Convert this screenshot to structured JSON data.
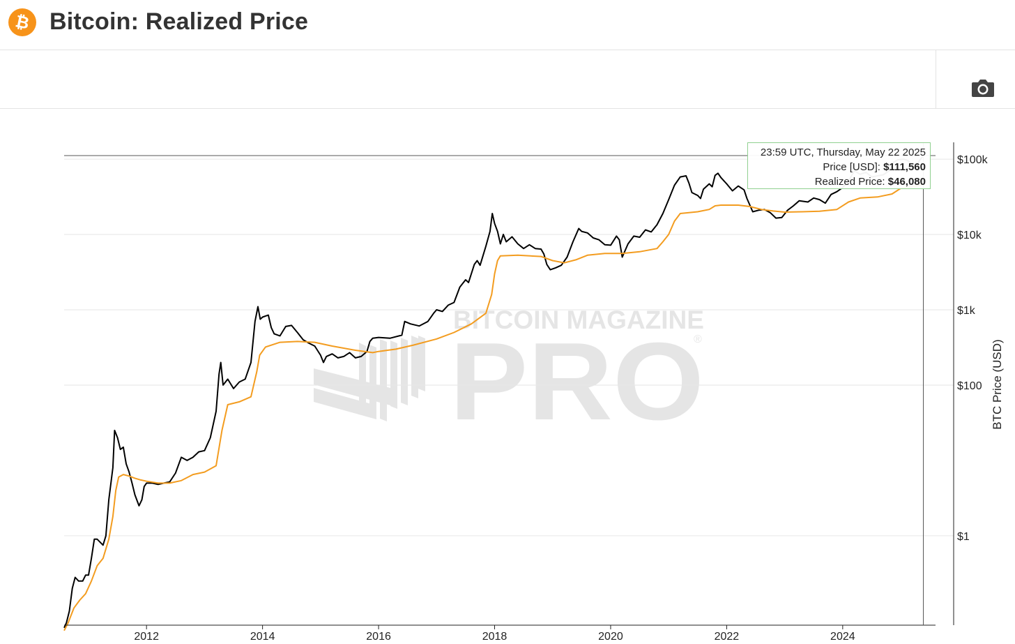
{
  "header": {
    "title": "Bitcoin: Realized Price",
    "logo_icon": "bitcoin-logo-icon",
    "logo_color": "#f7931a"
  },
  "toolbar": {
    "camera_icon": "camera-icon"
  },
  "watermark": {
    "line1": "BITCOIN MAGAZINE",
    "line2": "PRO",
    "registered": "®"
  },
  "tooltip": {
    "time": "23:59 UTC, Thursday, May 22 2025",
    "price_label": "Price [USD]: ",
    "price_value": "$111,560",
    "realized_label": "Realized Price: ",
    "realized_value": "$46,080"
  },
  "chart_data": {
    "type": "line",
    "title": "",
    "xlabel": "",
    "ylabel": "BTC Price (USD)",
    "yscale": "log",
    "ylim": [
      0.065,
      190000
    ],
    "xlim": [
      2010.58,
      2025.6
    ],
    "x_ticks": [
      2012,
      2014,
      2016,
      2018,
      2020,
      2022,
      2024
    ],
    "y_ticks": [
      {
        "value": 1,
        "label": "$1"
      },
      {
        "value": 100,
        "label": "$100"
      },
      {
        "value": 1000,
        "label": "$1k"
      },
      {
        "value": 10000,
        "label": "$10k"
      },
      {
        "value": 100000,
        "label": "$100k"
      }
    ],
    "grid": true,
    "legend": "none",
    "crosshair_x": 2025.39,
    "crosshair_y": 111560,
    "series": [
      {
        "name": "Price [USD]",
        "color": "#000000",
        "points": [
          [
            2010.58,
            0.06
          ],
          [
            2010.62,
            0.07
          ],
          [
            2010.67,
            0.1
          ],
          [
            2010.72,
            0.2
          ],
          [
            2010.77,
            0.28
          ],
          [
            2010.83,
            0.25
          ],
          [
            2010.9,
            0.25
          ],
          [
            2010.95,
            0.3
          ],
          [
            2011.0,
            0.3
          ],
          [
            2011.05,
            0.5
          ],
          [
            2011.1,
            0.9
          ],
          [
            2011.15,
            0.9
          ],
          [
            2011.25,
            0.75
          ],
          [
            2011.3,
            1.0
          ],
          [
            2011.35,
            3.0
          ],
          [
            2011.42,
            8.0
          ],
          [
            2011.45,
            25.0
          ],
          [
            2011.5,
            20.0
          ],
          [
            2011.55,
            14.0
          ],
          [
            2011.6,
            15.0
          ],
          [
            2011.65,
            9.0
          ],
          [
            2011.7,
            7.0
          ],
          [
            2011.75,
            5.0
          ],
          [
            2011.8,
            3.5
          ],
          [
            2011.87,
            2.5
          ],
          [
            2011.92,
            3.0
          ],
          [
            2011.96,
            4.5
          ],
          [
            2012.0,
            5.0
          ],
          [
            2012.1,
            5.0
          ],
          [
            2012.2,
            4.8
          ],
          [
            2012.3,
            5.0
          ],
          [
            2012.4,
            5.2
          ],
          [
            2012.5,
            6.8
          ],
          [
            2012.6,
            11.0
          ],
          [
            2012.7,
            10.0
          ],
          [
            2012.8,
            11.0
          ],
          [
            2012.9,
            13.0
          ],
          [
            2013.0,
            13.5
          ],
          [
            2013.1,
            20.0
          ],
          [
            2013.2,
            45.0
          ],
          [
            2013.25,
            140.0
          ],
          [
            2013.28,
            200.0
          ],
          [
            2013.32,
            100.0
          ],
          [
            2013.4,
            120.0
          ],
          [
            2013.5,
            90.0
          ],
          [
            2013.6,
            110.0
          ],
          [
            2013.7,
            120.0
          ],
          [
            2013.8,
            200.0
          ],
          [
            2013.87,
            700.0
          ],
          [
            2013.92,
            1100.0
          ],
          [
            2013.96,
            750.0
          ],
          [
            2014.0,
            800.0
          ],
          [
            2014.1,
            850.0
          ],
          [
            2014.15,
            580.0
          ],
          [
            2014.2,
            480.0
          ],
          [
            2014.3,
            450.0
          ],
          [
            2014.4,
            600.0
          ],
          [
            2014.5,
            620.0
          ],
          [
            2014.6,
            500.0
          ],
          [
            2014.7,
            400.0
          ],
          [
            2014.8,
            360.0
          ],
          [
            2014.9,
            330.0
          ],
          [
            2015.0,
            250.0
          ],
          [
            2015.05,
            200.0
          ],
          [
            2015.1,
            240.0
          ],
          [
            2015.2,
            260.0
          ],
          [
            2015.3,
            230.0
          ],
          [
            2015.4,
            240.0
          ],
          [
            2015.5,
            270.0
          ],
          [
            2015.6,
            230.0
          ],
          [
            2015.7,
            240.0
          ],
          [
            2015.8,
            280.0
          ],
          [
            2015.85,
            380.0
          ],
          [
            2015.9,
            420.0
          ],
          [
            2016.0,
            430.0
          ],
          [
            2016.2,
            420.0
          ],
          [
            2016.4,
            460.0
          ],
          [
            2016.45,
            700.0
          ],
          [
            2016.55,
            650.0
          ],
          [
            2016.7,
            610.0
          ],
          [
            2016.85,
            700.0
          ],
          [
            2016.95,
            900.0
          ],
          [
            2017.0,
            1000.0
          ],
          [
            2017.1,
            950.0
          ],
          [
            2017.2,
            1150.0
          ],
          [
            2017.3,
            1250.0
          ],
          [
            2017.4,
            2000.0
          ],
          [
            2017.5,
            2500.0
          ],
          [
            2017.55,
            2300.0
          ],
          [
            2017.65,
            4000.0
          ],
          [
            2017.7,
            4500.0
          ],
          [
            2017.75,
            3900.0
          ],
          [
            2017.85,
            7000.0
          ],
          [
            2017.92,
            11000.0
          ],
          [
            2017.96,
            19000.0
          ],
          [
            2018.0,
            14000.0
          ],
          [
            2018.05,
            11000.0
          ],
          [
            2018.1,
            7500.0
          ],
          [
            2018.15,
            10000.0
          ],
          [
            2018.2,
            8000.0
          ],
          [
            2018.3,
            9300.0
          ],
          [
            2018.4,
            7500.0
          ],
          [
            2018.5,
            6500.0
          ],
          [
            2018.6,
            7300.0
          ],
          [
            2018.7,
            6500.0
          ],
          [
            2018.8,
            6400.0
          ],
          [
            2018.85,
            5500.0
          ],
          [
            2018.9,
            4000.0
          ],
          [
            2018.96,
            3400.0
          ],
          [
            2019.05,
            3600.0
          ],
          [
            2019.15,
            3900.0
          ],
          [
            2019.25,
            5000.0
          ],
          [
            2019.35,
            8000.0
          ],
          [
            2019.45,
            12000.0
          ],
          [
            2019.5,
            11000.0
          ],
          [
            2019.6,
            10500.0
          ],
          [
            2019.7,
            9000.0
          ],
          [
            2019.8,
            8500.0
          ],
          [
            2019.9,
            7300.0
          ],
          [
            2020.0,
            7200.0
          ],
          [
            2020.1,
            9500.0
          ],
          [
            2020.15,
            8500.0
          ],
          [
            2020.2,
            5000.0
          ],
          [
            2020.3,
            7500.0
          ],
          [
            2020.4,
            9500.0
          ],
          [
            2020.5,
            9200.0
          ],
          [
            2020.6,
            11500.0
          ],
          [
            2020.7,
            10800.0
          ],
          [
            2020.8,
            13500.0
          ],
          [
            2020.9,
            19000.0
          ],
          [
            2021.0,
            29000.0
          ],
          [
            2021.1,
            45000.0
          ],
          [
            2021.2,
            58000.0
          ],
          [
            2021.3,
            60000.0
          ],
          [
            2021.35,
            48000.0
          ],
          [
            2021.4,
            36000.0
          ],
          [
            2021.5,
            33000.0
          ],
          [
            2021.55,
            30000.0
          ],
          [
            2021.6,
            40000.0
          ],
          [
            2021.7,
            47000.0
          ],
          [
            2021.75,
            43000.0
          ],
          [
            2021.8,
            61000.0
          ],
          [
            2021.85,
            65000.0
          ],
          [
            2021.9,
            57000.0
          ],
          [
            2022.0,
            47000.0
          ],
          [
            2022.1,
            38000.0
          ],
          [
            2022.2,
            44000.0
          ],
          [
            2022.3,
            39000.0
          ],
          [
            2022.35,
            30000.0
          ],
          [
            2022.45,
            20000.0
          ],
          [
            2022.55,
            21000.0
          ],
          [
            2022.65,
            21500.0
          ],
          [
            2022.75,
            19500.0
          ],
          [
            2022.85,
            16500.0
          ],
          [
            2022.95,
            16800.0
          ],
          [
            2023.05,
            21000.0
          ],
          [
            2023.15,
            24000.0
          ],
          [
            2023.25,
            28000.0
          ],
          [
            2023.4,
            27000.0
          ],
          [
            2023.5,
            30500.0
          ],
          [
            2023.6,
            29000.0
          ],
          [
            2023.7,
            26000.0
          ],
          [
            2023.8,
            34000.0
          ],
          [
            2023.9,
            37000.0
          ],
          [
            2024.0,
            42000.0
          ],
          [
            2024.1,
            51000.0
          ],
          [
            2024.2,
            70000.0
          ],
          [
            2024.3,
            63000.0
          ],
          [
            2024.4,
            67000.0
          ],
          [
            2024.5,
            58000.0
          ],
          [
            2024.6,
            60000.0
          ],
          [
            2024.7,
            62000.0
          ],
          [
            2024.8,
            70000.0
          ],
          [
            2024.87,
            90000.0
          ],
          [
            2024.95,
            98000.0
          ],
          [
            2025.05,
            100000.0
          ],
          [
            2025.12,
            96000.0
          ],
          [
            2025.2,
            84000.0
          ],
          [
            2025.28,
            85000.0
          ],
          [
            2025.33,
            97000.0
          ],
          [
            2025.39,
            111560.0
          ]
        ]
      },
      {
        "name": "Realized Price",
        "color": "#f39c1f",
        "points": [
          [
            2010.58,
            0.055
          ],
          [
            2010.65,
            0.07
          ],
          [
            2010.75,
            0.11
          ],
          [
            2010.85,
            0.14
          ],
          [
            2010.95,
            0.17
          ],
          [
            2011.05,
            0.25
          ],
          [
            2011.15,
            0.4
          ],
          [
            2011.25,
            0.5
          ],
          [
            2011.35,
            0.9
          ],
          [
            2011.42,
            1.8
          ],
          [
            2011.47,
            4.0
          ],
          [
            2011.52,
            6.0
          ],
          [
            2011.6,
            6.5
          ],
          [
            2011.7,
            6.2
          ],
          [
            2011.8,
            5.8
          ],
          [
            2011.9,
            5.5
          ],
          [
            2012.0,
            5.3
          ],
          [
            2012.2,
            5.0
          ],
          [
            2012.4,
            5.0
          ],
          [
            2012.6,
            5.4
          ],
          [
            2012.8,
            6.5
          ],
          [
            2013.0,
            7.0
          ],
          [
            2013.2,
            8.5
          ],
          [
            2013.3,
            25.0
          ],
          [
            2013.4,
            55.0
          ],
          [
            2013.6,
            60.0
          ],
          [
            2013.8,
            70.0
          ],
          [
            2013.9,
            150.0
          ],
          [
            2013.95,
            250.0
          ],
          [
            2014.05,
            320.0
          ],
          [
            2014.3,
            370.0
          ],
          [
            2014.6,
            380.0
          ],
          [
            2014.9,
            370.0
          ],
          [
            2015.2,
            330.0
          ],
          [
            2015.6,
            290.0
          ],
          [
            2015.9,
            270.0
          ],
          [
            2016.0,
            280.0
          ],
          [
            2016.3,
            300.0
          ],
          [
            2016.6,
            340.0
          ],
          [
            2017.0,
            410.0
          ],
          [
            2017.3,
            500.0
          ],
          [
            2017.6,
            650.0
          ],
          [
            2017.85,
            900.0
          ],
          [
            2017.95,
            1600.0
          ],
          [
            2018.0,
            3000.0
          ],
          [
            2018.05,
            4500.0
          ],
          [
            2018.1,
            5200.0
          ],
          [
            2018.4,
            5300.0
          ],
          [
            2018.8,
            5100.0
          ],
          [
            2019.0,
            4500.0
          ],
          [
            2019.2,
            4200.0
          ],
          [
            2019.4,
            4600.0
          ],
          [
            2019.6,
            5300.0
          ],
          [
            2019.9,
            5600.0
          ],
          [
            2020.2,
            5600.0
          ],
          [
            2020.5,
            5900.0
          ],
          [
            2020.8,
            6500.0
          ],
          [
            2020.9,
            8000.0
          ],
          [
            2021.0,
            10000.0
          ],
          [
            2021.1,
            15000.0
          ],
          [
            2021.2,
            19000.0
          ],
          [
            2021.5,
            20000.0
          ],
          [
            2021.7,
            21500.0
          ],
          [
            2021.8,
            24000.0
          ],
          [
            2021.9,
            24500.0
          ],
          [
            2022.2,
            24500.0
          ],
          [
            2022.4,
            23500.0
          ],
          [
            2022.6,
            21500.0
          ],
          [
            2022.8,
            20500.0
          ],
          [
            2023.0,
            19800.0
          ],
          [
            2023.3,
            20000.0
          ],
          [
            2023.6,
            20300.0
          ],
          [
            2023.9,
            21500.0
          ],
          [
            2024.1,
            27000.0
          ],
          [
            2024.3,
            30500.0
          ],
          [
            2024.6,
            31500.0
          ],
          [
            2024.85,
            34500.0
          ],
          [
            2025.0,
            41000.0
          ],
          [
            2025.2,
            43000.0
          ],
          [
            2025.39,
            46080.0
          ]
        ]
      }
    ]
  }
}
